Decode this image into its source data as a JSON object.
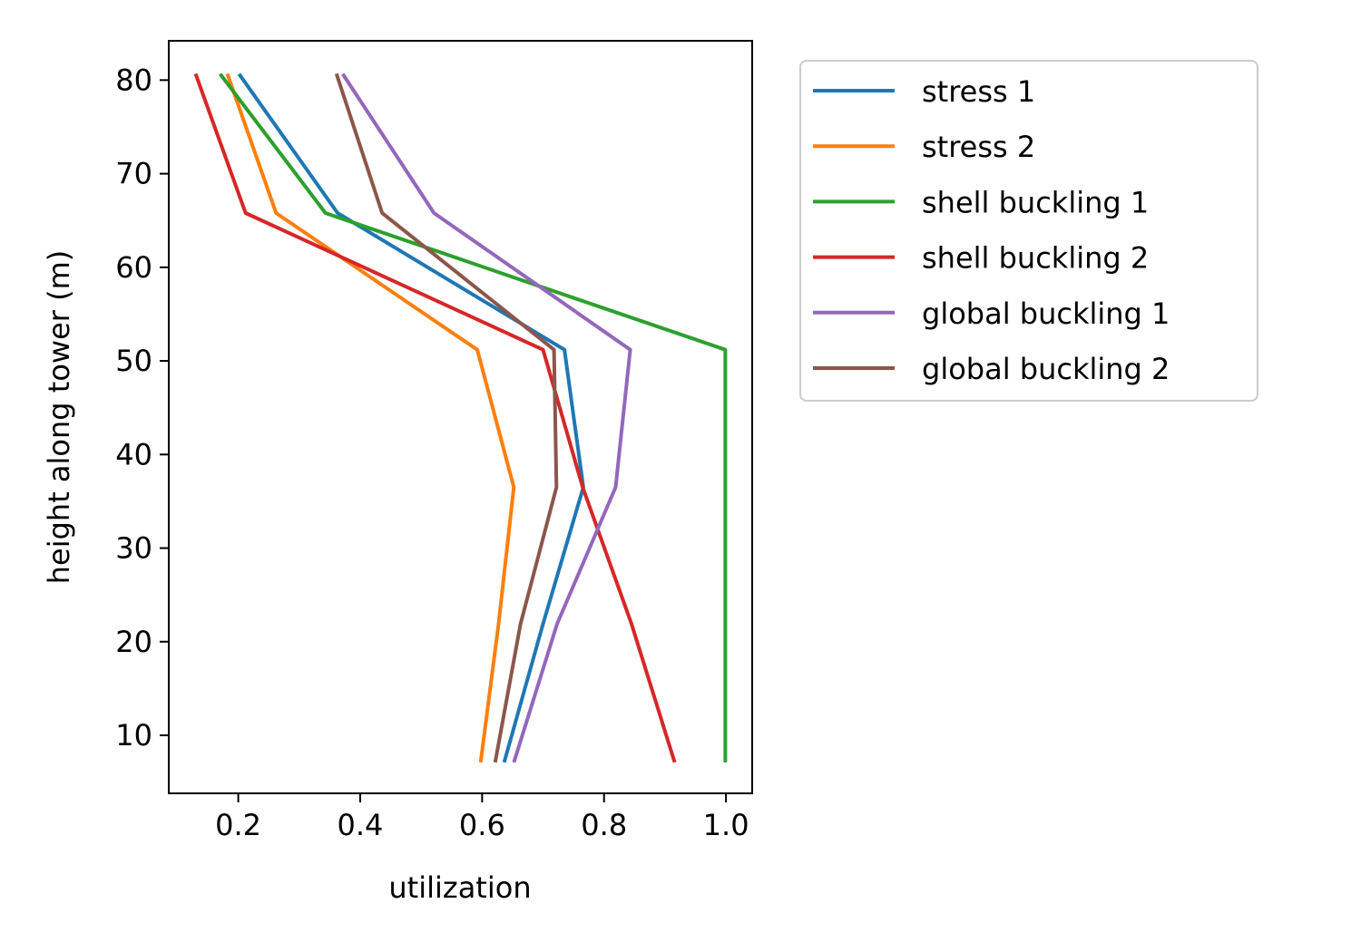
{
  "chart_data": {
    "type": "line",
    "title": "",
    "xlabel": "utilization",
    "ylabel": "height along tower (m)",
    "xlim": [
      0.086,
      1.043
    ],
    "ylim": [
      3.8,
      84.2
    ],
    "xticks": [
      "0.2",
      "0.4",
      "0.6",
      "0.8",
      "1.0"
    ],
    "yticks": [
      "10",
      "20",
      "30",
      "40",
      "50",
      "60",
      "70",
      "80"
    ],
    "grid": false,
    "legend_position": "outside-right",
    "x_quantity": "utilization",
    "y_quantity": "height along tower (m)",
    "heights": [
      7.3,
      21.9,
      36.5,
      51.2,
      65.8,
      80.5
    ],
    "series": [
      {
        "name": "stress 1",
        "color": "#1f77b4",
        "values": [
          0.637,
          0.7,
          0.766,
          0.735,
          0.363,
          0.203
        ]
      },
      {
        "name": "stress 2",
        "color": "#ff7f0e",
        "values": [
          0.598,
          0.627,
          0.652,
          0.592,
          0.262,
          0.183
        ]
      },
      {
        "name": "shell buckling 1",
        "color": "#2ca02c",
        "values": [
          0.999,
          0.999,
          0.999,
          0.999,
          0.343,
          0.172
        ]
      },
      {
        "name": "shell buckling 2",
        "color": "#d62728",
        "values": [
          0.915,
          0.845,
          0.765,
          0.7,
          0.212,
          0.131
        ]
      },
      {
        "name": "global buckling 1",
        "color": "#9467bd",
        "values": [
          0.653,
          0.723,
          0.819,
          0.843,
          0.521,
          0.373
        ]
      },
      {
        "name": "global buckling 2",
        "color": "#8c564b",
        "values": [
          0.622,
          0.663,
          0.722,
          0.718,
          0.436,
          0.362
        ]
      }
    ]
  }
}
